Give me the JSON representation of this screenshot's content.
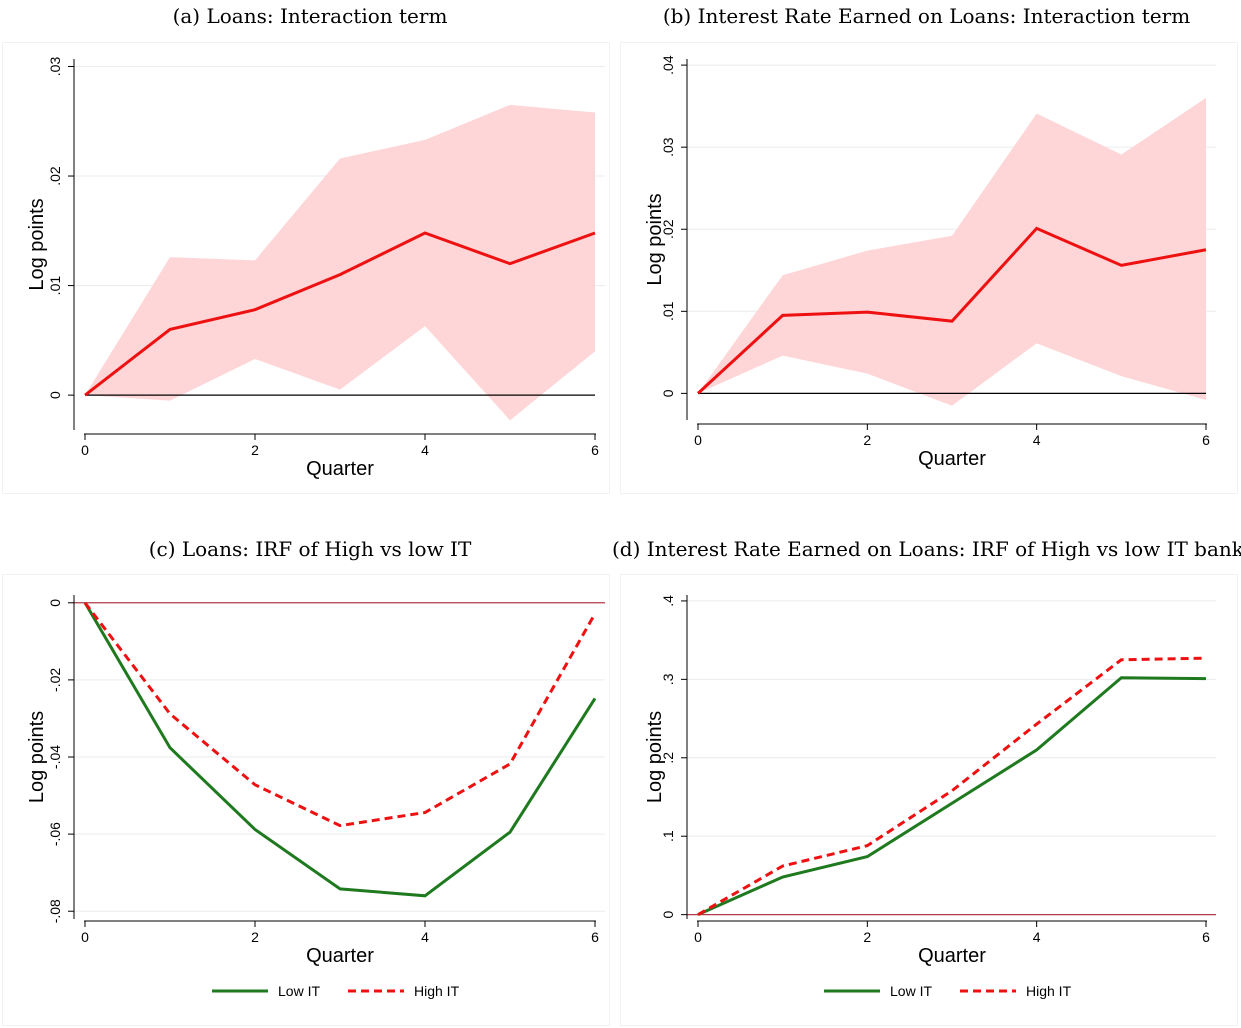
{
  "captions": {
    "a": "(a) Loans: Interaction term",
    "b": "(b) Interest Rate Earned on Loans: Interaction term",
    "c": "(c) Loans: IRF of High vs low IT",
    "d": "(d) Interest Rate Earned on Loans: IRF of High vs low IT banks"
  },
  "colors": {
    "band": "#ffd6d8",
    "point_line": "#ee1111",
    "zero_line_top": "#000000",
    "zero_line_bottom": "#b03a48",
    "low_it": "#1f7a1f",
    "high_it": "#ee1111",
    "grid": "#eaecee"
  },
  "chart_data": [
    {
      "id": "a",
      "type": "line",
      "xlabel": "Quarter",
      "ylabel": "Log points",
      "xlim": [
        0,
        6
      ],
      "ylim": [
        -0.003,
        0.0305
      ],
      "xticks": [
        0,
        2,
        4,
        6
      ],
      "xtick_labels": [
        "0",
        "2",
        "4",
        "6"
      ],
      "yticks": [
        0,
        0.01,
        0.02,
        0.03
      ],
      "ytick_labels": [
        "0",
        ".01",
        ".02",
        ".03"
      ],
      "x": [
        0,
        1,
        2,
        3,
        4,
        5,
        6
      ],
      "estimate": [
        0,
        0.006,
        0.0078,
        0.011,
        0.0148,
        0.012,
        0.0148
      ],
      "ci_upper": [
        0,
        0.0126,
        0.0123,
        0.0216,
        0.0233,
        0.0265,
        0.0258
      ],
      "ci_lower": [
        0,
        -0.0005,
        0.0033,
        0.0005,
        0.0063,
        -0.0023,
        0.004
      ],
      "grid": true
    },
    {
      "id": "b",
      "type": "line",
      "xlabel": "Quarter",
      "ylabel": "Log points",
      "xlim": [
        0,
        6
      ],
      "ylim": [
        -0.003,
        0.0405
      ],
      "xticks": [
        0,
        2,
        4,
        6
      ],
      "xtick_labels": [
        "0",
        "2",
        "4",
        "6"
      ],
      "yticks": [
        0,
        0.01,
        0.02,
        0.03,
        0.04
      ],
      "ytick_labels": [
        "0",
        ".01",
        ".02",
        ".03",
        ".04"
      ],
      "x": [
        0,
        1,
        2,
        3,
        4,
        5,
        6
      ],
      "estimate": [
        0,
        0.0095,
        0.0099,
        0.0088,
        0.0201,
        0.0156,
        0.0175
      ],
      "ci_upper": [
        0,
        0.0144,
        0.0174,
        0.0192,
        0.0341,
        0.0291,
        0.036
      ],
      "ci_lower": [
        0,
        0.0046,
        0.0024,
        -0.0015,
        0.0061,
        0.0021,
        -0.0008
      ],
      "grid": true
    },
    {
      "id": "c",
      "type": "line",
      "xlabel": "Quarter",
      "ylabel": "Log points",
      "xlim": [
        0,
        6
      ],
      "ylim": [
        -0.0815,
        0.0015
      ],
      "xticks": [
        0,
        2,
        4,
        6
      ],
      "xtick_labels": [
        "0",
        "2",
        "4",
        "6"
      ],
      "yticks": [
        0,
        -0.02,
        -0.04,
        -0.06,
        -0.08
      ],
      "ytick_labels": [
        "0",
        "-.02",
        "-.04",
        "-.06",
        "-.08"
      ],
      "x": [
        0,
        1,
        2,
        3,
        4,
        5,
        6
      ],
      "series": [
        {
          "name": "Low IT",
          "style": "solid",
          "values": [
            0,
            -0.0376,
            -0.0588,
            -0.0742,
            -0.076,
            -0.0595,
            -0.0248
          ]
        },
        {
          "name": "High IT",
          "style": "dashed",
          "values": [
            0,
            -0.0288,
            -0.0472,
            -0.0578,
            -0.0544,
            -0.0418,
            -0.0028
          ]
        }
      ],
      "legend": "bottom",
      "grid": true
    },
    {
      "id": "d",
      "type": "line",
      "xlabel": "Quarter",
      "ylabel": "Log points",
      "xlim": [
        0,
        6
      ],
      "ylim": [
        -0.003,
        0.405
      ],
      "xticks": [
        0,
        2,
        4,
        6
      ],
      "xtick_labels": [
        "0",
        "2",
        "4",
        "6"
      ],
      "yticks": [
        0,
        0.1,
        0.2,
        0.3,
        0.4
      ],
      "ytick_labels": [
        "0",
        ".1",
        ".2",
        ".3",
        ".4"
      ],
      "x": [
        0,
        1,
        2,
        3,
        4,
        5,
        6
      ],
      "series": [
        {
          "name": "Low IT",
          "style": "solid",
          "values": [
            0,
            0.048,
            0.074,
            0.142,
            0.21,
            0.302,
            0.301
          ]
        },
        {
          "name": "High IT",
          "style": "dashed",
          "values": [
            0,
            0.062,
            0.088,
            0.158,
            0.243,
            0.325,
            0.327
          ]
        }
      ],
      "legend": "bottom",
      "grid": true
    }
  ]
}
